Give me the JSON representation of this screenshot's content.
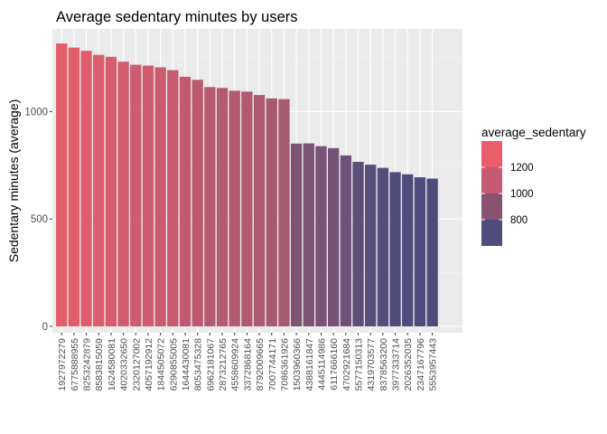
{
  "chart_data": {
    "type": "bar",
    "title": "Average sedentary minutes by users",
    "xlabel": "",
    "ylabel": "Sedentary minutes (average)",
    "ylim": [
      0,
      1380
    ],
    "yticks": [
      0,
      500,
      1000
    ],
    "grid": true,
    "legend": {
      "title": "average_sedentary",
      "position": "right",
      "labels": [
        "1200",
        "1000",
        "800"
      ],
      "colors": [
        "#E95D6B",
        "#C55A73",
        "#8A5271",
        "#4E4C7C"
      ]
    },
    "categories": [
      "1927972279",
      "6775888955",
      "8253242879",
      "8583815059",
      "1624580081",
      "4020332650",
      "2320127002",
      "4057192912",
      "1844505072",
      "6290855005",
      "1644430081",
      "8053475328",
      "6962181067",
      "2873212765",
      "4558609924",
      "3372868164",
      "8792009665",
      "7007744171",
      "7086361926",
      "1503960366",
      "4388161847",
      "4445114986",
      "6117666160",
      "4702921684",
      "5577150313",
      "4319703577",
      "8378563200",
      "3977333714",
      "2026352035",
      "2347167796",
      "5553957443"
    ],
    "values": [
      1317,
      1298,
      1283,
      1264,
      1255,
      1232,
      1218,
      1214,
      1206,
      1193,
      1162,
      1148,
      1114,
      1110,
      1097,
      1093,
      1077,
      1061,
      1058,
      851,
      852,
      839,
      830,
      796,
      766,
      753,
      738,
      718,
      708,
      694,
      688
    ],
    "colors": [
      "#E65D6C",
      "#E25D6C",
      "#DF5D6D",
      "#DA5C6D",
      "#D85C6D",
      "#D25B6E",
      "#CF5B6E",
      "#CE5B6E",
      "#CC5B6E",
      "#C85B6F",
      "#C15A6F",
      "#BD5A70",
      "#B65A70",
      "#B55A70",
      "#B15A70",
      "#B05A70",
      "#AB5A71",
      "#A75970",
      "#A65970",
      "#7E5475",
      "#7E5475",
      "#7A5376",
      "#785276",
      "#6E5178",
      "#5E4F7A",
      "#594F7B",
      "#534E7C",
      "#4F4D7C",
      "#4E4C7C",
      "#4E4C7C",
      "#4E4C7C"
    ]
  }
}
